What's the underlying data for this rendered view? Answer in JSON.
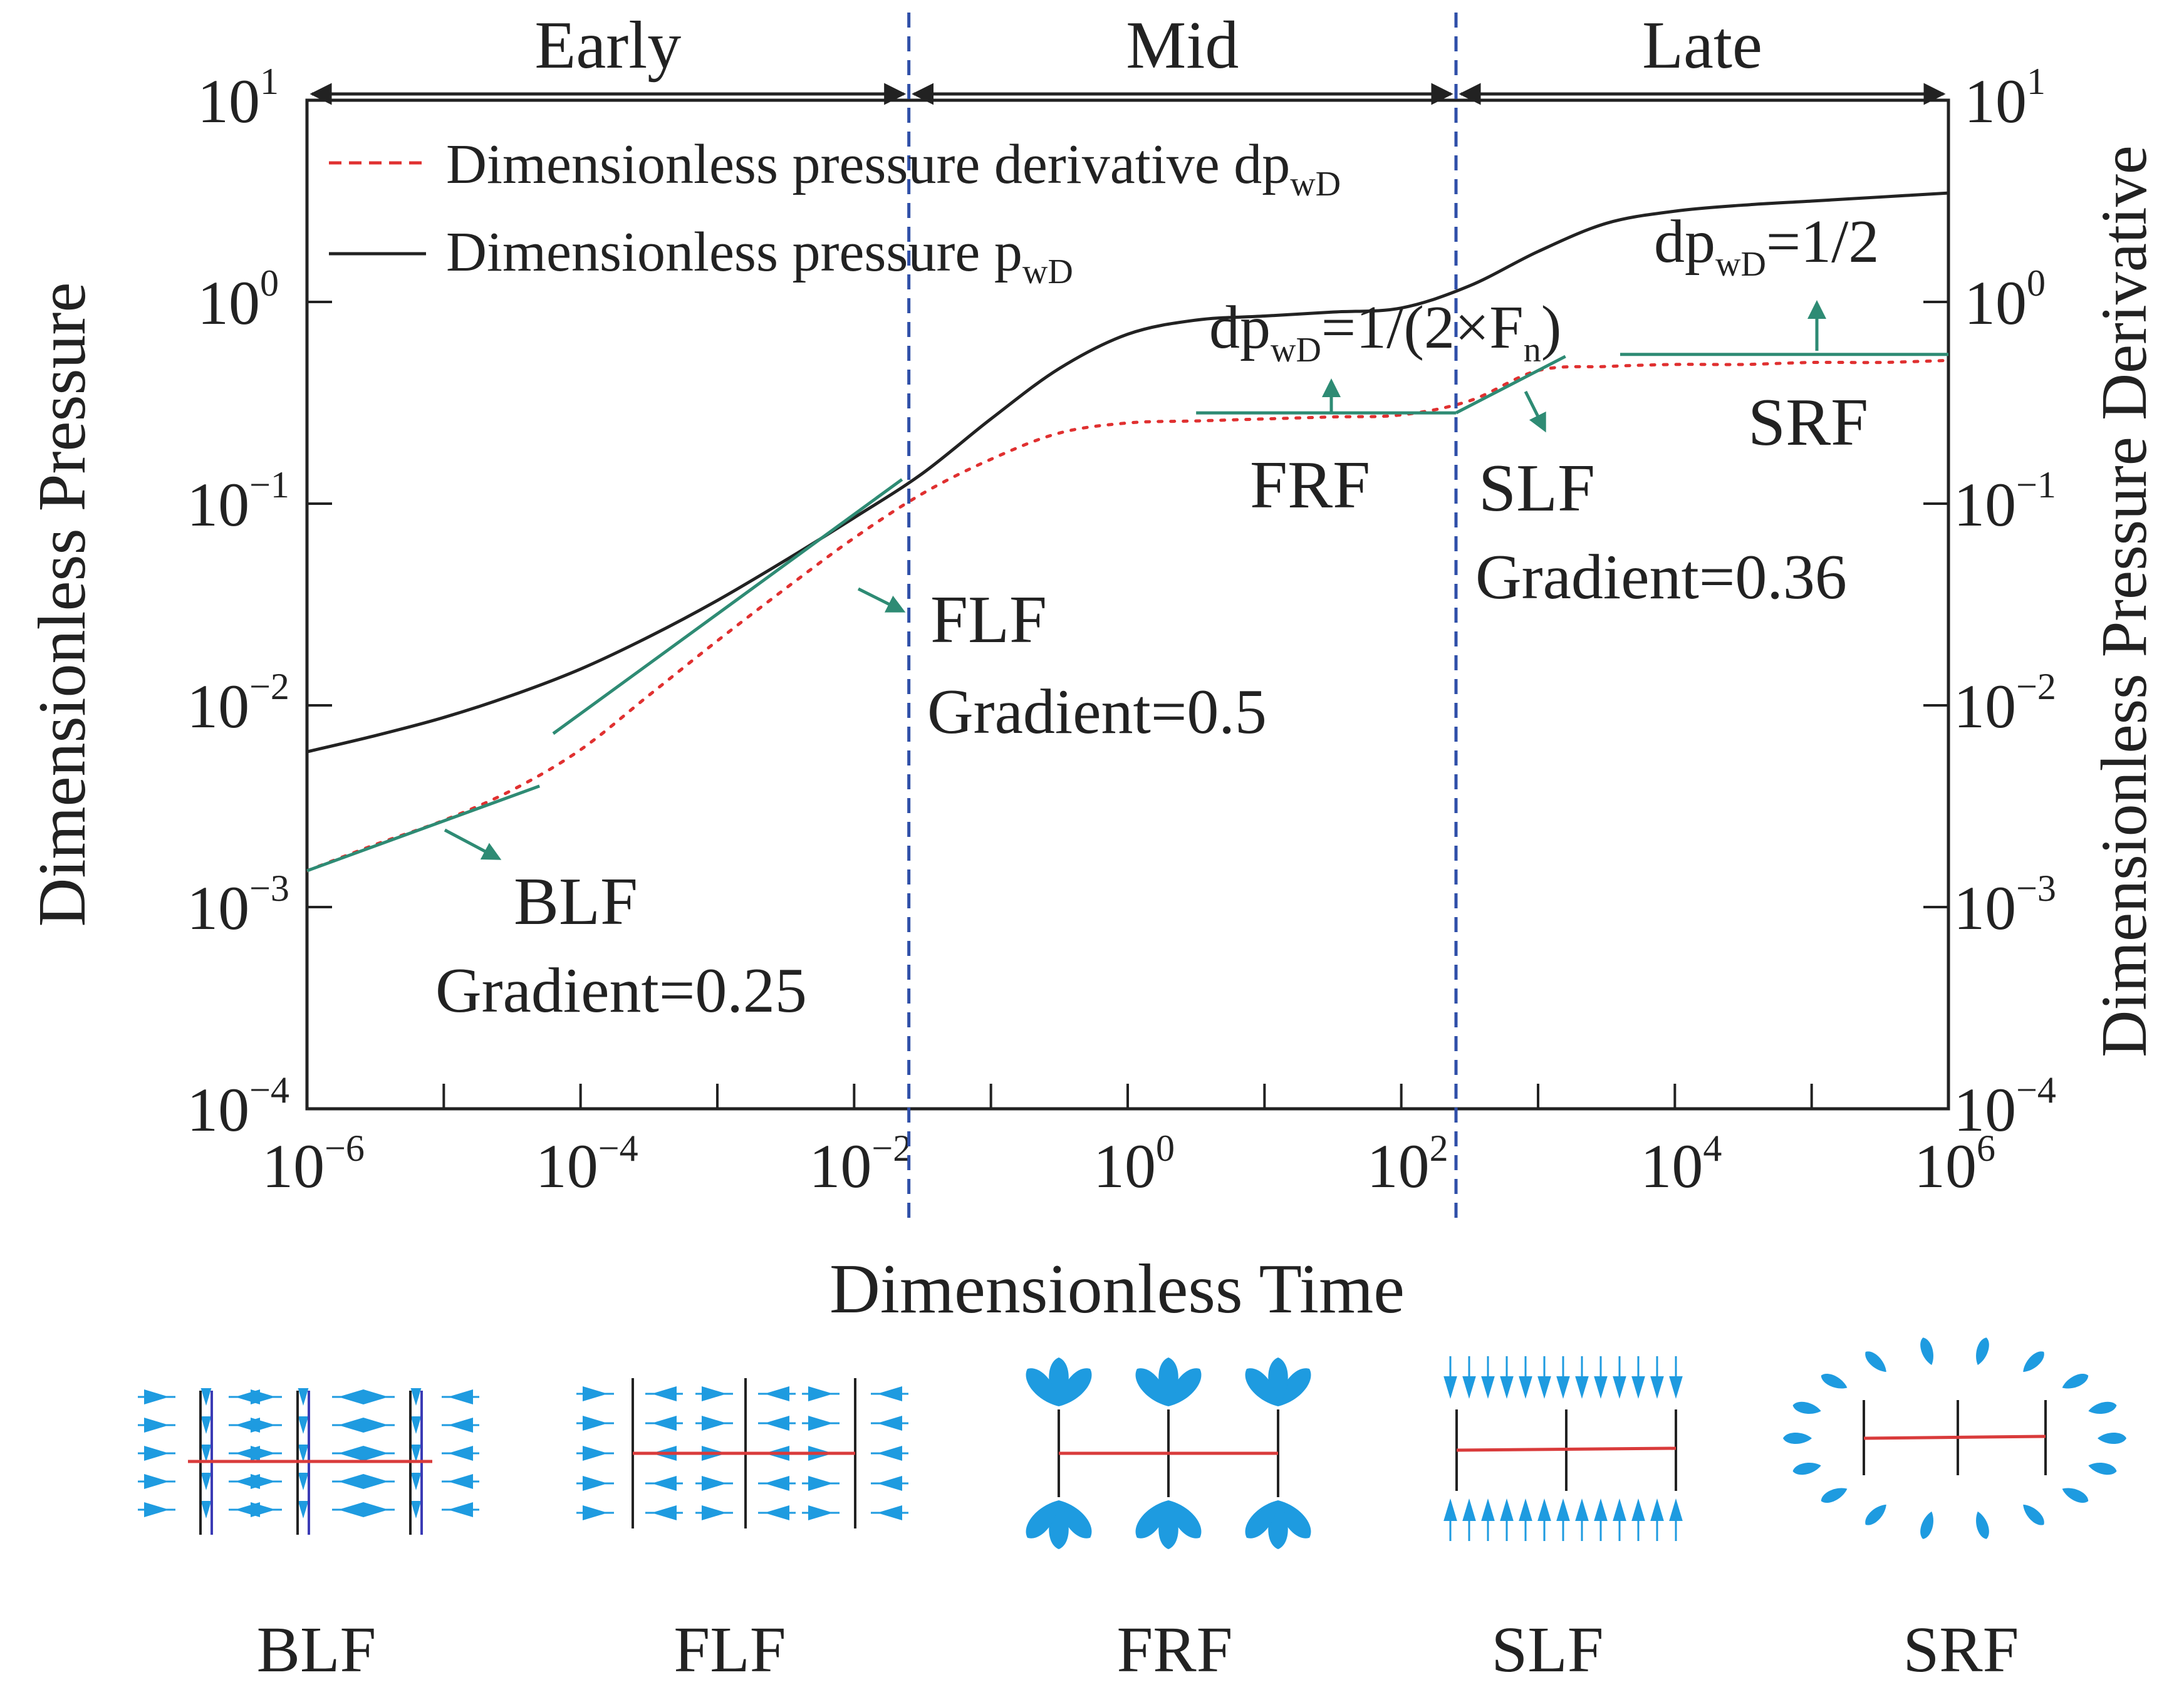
{
  "colors": {
    "pressure": "#222222",
    "derivative": "#e03030",
    "fit": "#2e8b74",
    "divider": "#2f4fa8",
    "fracture": "#222222",
    "well": "#d93b3b",
    "flow": "#1e9be0"
  },
  "chart_data": {
    "type": "line",
    "title": "",
    "xlabel": "Dimensionless Time",
    "ylabel": "Dimensionless Pressure",
    "y2label": "Dimensionless Pressure Derivative",
    "xscale": "log",
    "yscale": "log",
    "xlim": [
      -6,
      6
    ],
    "ylim": [
      -4,
      1
    ],
    "x_ticks": [
      {
        "base": "10",
        "exp": "−6"
      },
      {
        "base": "10",
        "exp": "−4"
      },
      {
        "base": "10",
        "exp": "−2"
      },
      {
        "base": "10",
        "exp": "0"
      },
      {
        "base": "10",
        "exp": "2"
      },
      {
        "base": "10",
        "exp": "4"
      },
      {
        "base": "10",
        "exp": "6"
      }
    ],
    "y_ticks": [
      {
        "base": "10",
        "exp": "−4"
      },
      {
        "base": "10",
        "exp": "−3"
      },
      {
        "base": "10",
        "exp": "−2"
      },
      {
        "base": "10",
        "exp": "−1"
      },
      {
        "base": "10",
        "exp": "0"
      },
      {
        "base": "10",
        "exp": "1"
      }
    ],
    "legend": [
      {
        "name": "derivative",
        "style": "dashed",
        "text": "Dimensionless pressure derivative dp",
        "sub": "wD"
      },
      {
        "name": "pressure",
        "style": "solid",
        "text": "Dimensionless pressure p",
        "sub": "wD"
      }
    ],
    "series": [
      {
        "name": "Dimensionless pressure pwD",
        "log_x": [
          -6,
          -5.5,
          -5,
          -4.5,
          -4,
          -3.5,
          -3,
          -2.5,
          -2,
          -1.5,
          -1,
          -0.5,
          0,
          0.5,
          1,
          1.5,
          2,
          2.5,
          3,
          3.5,
          4,
          4.5,
          5,
          5.5,
          6
        ],
        "log_y": [
          -2.23,
          -2.15,
          -2.06,
          -1.95,
          -1.82,
          -1.66,
          -1.48,
          -1.28,
          -1.07,
          -0.85,
          -0.58,
          -0.33,
          -0.16,
          -0.09,
          -0.07,
          -0.05,
          -0.03,
          0.08,
          0.25,
          0.39,
          0.45,
          0.48,
          0.5,
          0.52,
          0.54
        ]
      },
      {
        "name": "Dimensionless pressure derivative dpwD",
        "log_x": [
          -6,
          -5.5,
          -5,
          -4.5,
          -4,
          -3.5,
          -3,
          -2.5,
          -2,
          -1.5,
          -1,
          -0.5,
          0,
          0.5,
          1,
          1.5,
          2,
          2.5,
          3,
          3.5,
          4,
          4.5,
          5,
          5.5,
          6
        ],
        "log_y": [
          -2.82,
          -2.69,
          -2.57,
          -2.42,
          -2.22,
          -1.95,
          -1.68,
          -1.42,
          -1.17,
          -0.95,
          -0.78,
          -0.65,
          -0.6,
          -0.59,
          -0.58,
          -0.57,
          -0.56,
          -0.49,
          -0.34,
          -0.32,
          -0.31,
          -0.31,
          -0.3,
          -0.3,
          -0.29
        ]
      }
    ],
    "fit_lines": [
      {
        "name": "BLF",
        "log_x": [
          -6,
          -4.3
        ],
        "log_y": [
          -2.82,
          -2.4
        ]
      },
      {
        "name": "FLF",
        "log_x": [
          -4.2,
          -1.65
        ],
        "log_y": [
          -2.14,
          -0.88
        ]
      },
      {
        "name": "FRF",
        "log_x": [
          0.5,
          2.4
        ],
        "log_y": [
          -0.55,
          -0.55
        ]
      },
      {
        "name": "SLF",
        "log_x": [
          2.4,
          3.2
        ],
        "log_y": [
          -0.55,
          -0.27
        ]
      },
      {
        "name": "SRF",
        "log_x": [
          3.6,
          6
        ],
        "log_y": [
          -0.26,
          -0.26
        ]
      }
    ],
    "dividers_log_x": [
      -1.6,
      2.4
    ],
    "regions": [
      {
        "label": "Early",
        "from": -6,
        "to": -1.6
      },
      {
        "label": "Mid",
        "from": -1.6,
        "to": 2.4
      },
      {
        "label": "Late",
        "from": 2.4,
        "to": 6
      }
    ],
    "annotations": {
      "frf_title": {
        "main": "dp",
        "sub": "wD",
        "tail": "=1/(2×F",
        "sub2": "n",
        "end": ")"
      },
      "srf_title": {
        "main": "dp",
        "sub": "wD",
        "tail": "=1/2"
      },
      "flf": {
        "name": "FLF",
        "gradient": "Gradient=0.5"
      },
      "blf": {
        "name": "BLF",
        "gradient": "Gradient=0.25"
      },
      "frf": {
        "name": "FRF"
      },
      "slf": {
        "name": "SLF",
        "gradient": "Gradient=0.36"
      },
      "srf": {
        "name": "SRF"
      }
    }
  },
  "diagrams": [
    {
      "name": "blf",
      "label": "BLF"
    },
    {
      "name": "flf",
      "label": "FLF"
    },
    {
      "name": "frf",
      "label": "FRF"
    },
    {
      "name": "slf",
      "label": "SLF"
    },
    {
      "name": "srf",
      "label": "SRF"
    }
  ]
}
